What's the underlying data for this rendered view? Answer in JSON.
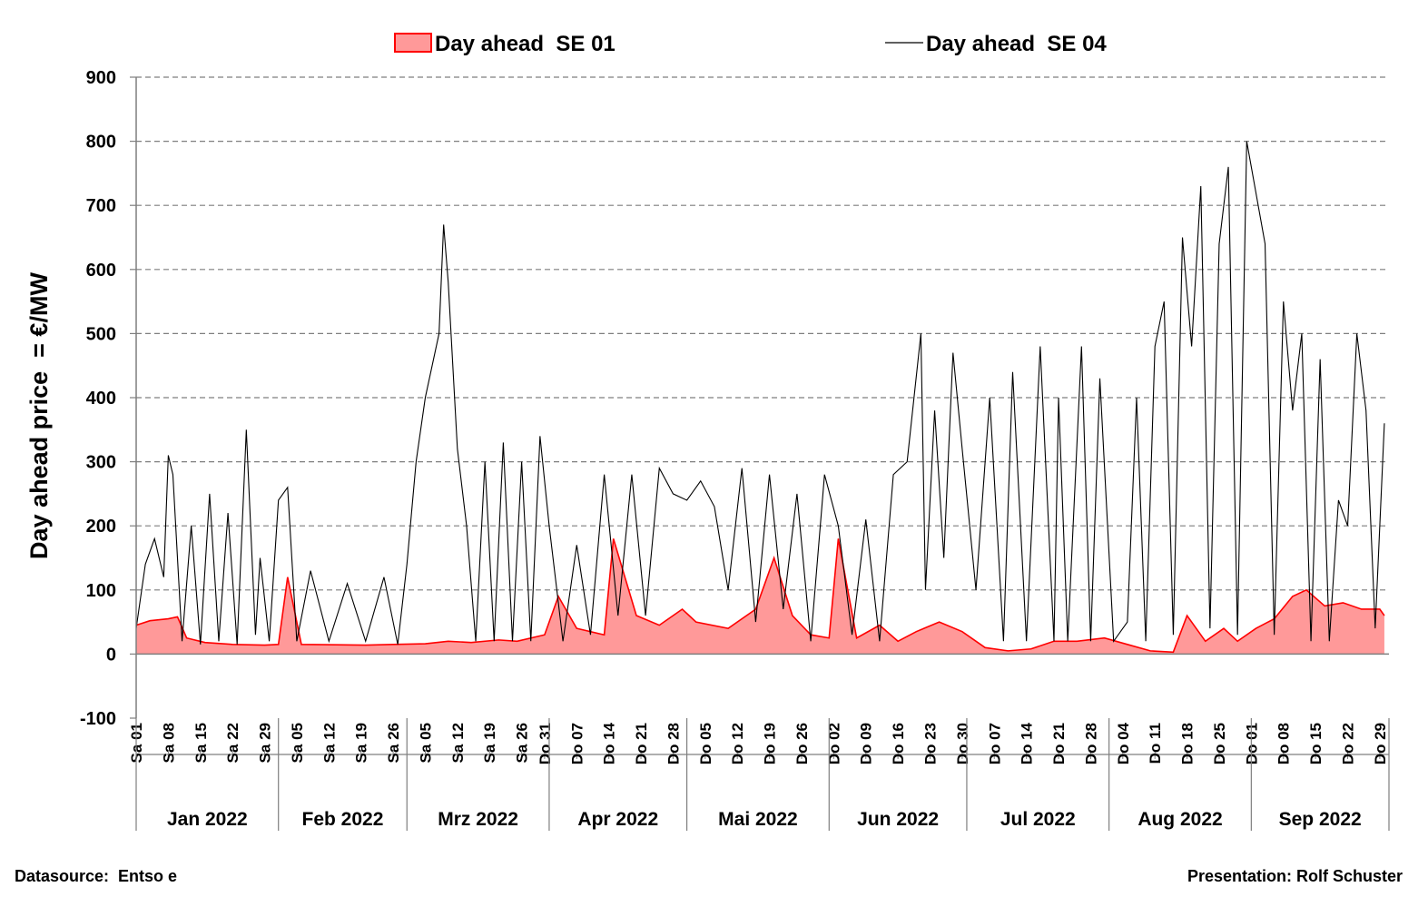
{
  "chart_data": {
    "type": "area",
    "ylabel": "Day ahead price  = €/MW",
    "ylim": [
      -100,
      900
    ],
    "yticks": [
      -100,
      0,
      100,
      200,
      300,
      400,
      500,
      600,
      700,
      800,
      900
    ],
    "grid": "horizontal-dashed",
    "legend_position": "top",
    "x_range": [
      "2022-01-01",
      "2022-09-30"
    ],
    "series": [
      {
        "name": "Day ahead  SE 01",
        "render": "area",
        "color_fill": "#ff9999",
        "color_line": "#ff0000",
        "x": [
          "2022-01-01",
          "2022-01-04",
          "2022-01-08",
          "2022-01-10",
          "2022-01-12",
          "2022-01-16",
          "2022-01-22",
          "2022-01-29",
          "2022-02-01",
          "2022-02-03",
          "2022-02-06",
          "2022-02-20",
          "2022-02-26",
          "2022-03-05",
          "2022-03-10",
          "2022-03-15",
          "2022-03-21",
          "2022-03-25",
          "2022-03-31",
          "2022-04-03",
          "2022-04-07",
          "2022-04-13",
          "2022-04-15",
          "2022-04-20",
          "2022-04-25",
          "2022-04-30",
          "2022-05-03",
          "2022-05-10",
          "2022-05-16",
          "2022-05-20",
          "2022-05-24",
          "2022-05-28",
          "2022-06-01",
          "2022-06-03",
          "2022-06-07",
          "2022-06-12",
          "2022-06-16",
          "2022-06-20",
          "2022-06-25",
          "2022-06-30",
          "2022-07-05",
          "2022-07-10",
          "2022-07-15",
          "2022-07-20",
          "2022-07-25",
          "2022-07-31",
          "2022-08-05",
          "2022-08-10",
          "2022-08-15",
          "2022-08-18",
          "2022-08-22",
          "2022-08-26",
          "2022-08-29",
          "2022-09-02",
          "2022-09-06",
          "2022-09-10",
          "2022-09-13",
          "2022-09-17",
          "2022-09-21",
          "2022-09-25",
          "2022-09-29",
          "2022-09-30"
        ],
        "y": [
          45,
          52,
          55,
          58,
          25,
          18,
          15,
          14,
          15,
          120,
          15,
          14,
          15,
          16,
          20,
          18,
          22,
          20,
          30,
          90,
          40,
          30,
          180,
          60,
          45,
          70,
          50,
          40,
          70,
          150,
          60,
          30,
          25,
          180,
          25,
          45,
          20,
          35,
          50,
          35,
          10,
          5,
          8,
          20,
          20,
          25,
          15,
          5,
          3,
          60,
          20,
          40,
          20,
          40,
          55,
          90,
          100,
          75,
          80,
          70,
          70,
          60
        ]
      },
      {
        "name": "Day ahead  SE 04",
        "render": "line",
        "color_line": "#000000",
        "x": [
          "2022-01-01",
          "2022-01-03",
          "2022-01-05",
          "2022-01-07",
          "2022-01-08",
          "2022-01-09",
          "2022-01-11",
          "2022-01-13",
          "2022-01-15",
          "2022-01-17",
          "2022-01-19",
          "2022-01-21",
          "2022-01-23",
          "2022-01-25",
          "2022-01-27",
          "2022-01-28",
          "2022-01-30",
          "2022-02-01",
          "2022-02-03",
          "2022-02-05",
          "2022-02-08",
          "2022-02-12",
          "2022-02-16",
          "2022-02-20",
          "2022-02-24",
          "2022-02-27",
          "2022-03-01",
          "2022-03-03",
          "2022-03-05",
          "2022-03-08",
          "2022-03-09",
          "2022-03-10",
          "2022-03-12",
          "2022-03-14",
          "2022-03-16",
          "2022-03-18",
          "2022-03-20",
          "2022-03-22",
          "2022-03-24",
          "2022-03-26",
          "2022-03-28",
          "2022-03-30",
          "2022-04-01",
          "2022-04-04",
          "2022-04-07",
          "2022-04-10",
          "2022-04-13",
          "2022-04-16",
          "2022-04-19",
          "2022-04-22",
          "2022-04-25",
          "2022-04-28",
          "2022-05-01",
          "2022-05-04",
          "2022-05-07",
          "2022-05-10",
          "2022-05-13",
          "2022-05-16",
          "2022-05-19",
          "2022-05-22",
          "2022-05-25",
          "2022-05-28",
          "2022-05-31",
          "2022-06-03",
          "2022-06-06",
          "2022-06-09",
          "2022-06-12",
          "2022-06-15",
          "2022-06-18",
          "2022-06-21",
          "2022-06-22",
          "2022-06-24",
          "2022-06-26",
          "2022-06-28",
          "2022-06-30",
          "2022-07-03",
          "2022-07-06",
          "2022-07-09",
          "2022-07-11",
          "2022-07-14",
          "2022-07-17",
          "2022-07-20",
          "2022-07-21",
          "2022-07-23",
          "2022-07-26",
          "2022-07-28",
          "2022-07-30",
          "2022-08-02",
          "2022-08-05",
          "2022-08-07",
          "2022-08-09",
          "2022-08-11",
          "2022-08-13",
          "2022-08-15",
          "2022-08-17",
          "2022-08-19",
          "2022-08-21",
          "2022-08-23",
          "2022-08-25",
          "2022-08-27",
          "2022-08-29",
          "2022-08-31",
          "2022-09-02",
          "2022-09-04",
          "2022-09-06",
          "2022-09-08",
          "2022-09-10",
          "2022-09-12",
          "2022-09-14",
          "2022-09-16",
          "2022-09-18",
          "2022-09-20",
          "2022-09-22",
          "2022-09-24",
          "2022-09-26",
          "2022-09-28",
          "2022-09-30"
        ],
        "y": [
          40,
          140,
          180,
          120,
          310,
          280,
          20,
          200,
          15,
          250,
          20,
          220,
          15,
          350,
          30,
          150,
          20,
          240,
          260,
          20,
          130,
          20,
          110,
          20,
          120,
          15,
          140,
          300,
          400,
          500,
          670,
          580,
          320,
          200,
          20,
          300,
          20,
          330,
          20,
          300,
          20,
          340,
          200,
          20,
          170,
          30,
          280,
          60,
          280,
          60,
          290,
          250,
          240,
          270,
          230,
          100,
          290,
          50,
          280,
          70,
          250,
          20,
          280,
          200,
          30,
          210,
          20,
          280,
          300,
          500,
          100,
          380,
          150,
          470,
          320,
          100,
          400,
          20,
          440,
          20,
          480,
          20,
          400,
          20,
          480,
          20,
          430,
          20,
          50,
          400,
          20,
          480,
          550,
          30,
          650,
          480,
          730,
          40,
          640,
          760,
          30,
          800,
          720,
          640,
          30,
          550,
          380,
          500,
          20,
          460,
          20,
          240,
          200,
          500,
          380,
          40,
          360
        ]
      }
    ],
    "x_tick_labels": [
      "Sa 01",
      "Sa 08",
      "Sa 15",
      "Sa 22",
      "Sa 29",
      "Sa 05",
      "Sa 12",
      "Sa 19",
      "Sa 26",
      "Sa 05",
      "Sa 12",
      "Sa 19",
      "Sa 26",
      "Do 31",
      "Do 07",
      "Do 14",
      "Do 21",
      "Do 28",
      "Do 05",
      "Do 12",
      "Do 19",
      "Do 26",
      "Do 02",
      "Do 09",
      "Do 16",
      "Do 23",
      "Do 30",
      "Do 07",
      "Do 14",
      "Do 21",
      "Do 28",
      "Do 04",
      "Do 11",
      "Do 18",
      "Do 25",
      "Do 01",
      "Do 08",
      "Do 15",
      "Do 22",
      "Do 29"
    ],
    "x_tick_dates": [
      "2022-01-01",
      "2022-01-08",
      "2022-01-15",
      "2022-01-22",
      "2022-01-29",
      "2022-02-05",
      "2022-02-12",
      "2022-02-19",
      "2022-02-26",
      "2022-03-05",
      "2022-03-12",
      "2022-03-19",
      "2022-03-26",
      "2022-03-31",
      "2022-04-07",
      "2022-04-14",
      "2022-04-21",
      "2022-04-28",
      "2022-05-05",
      "2022-05-12",
      "2022-05-19",
      "2022-05-26",
      "2022-06-02",
      "2022-06-09",
      "2022-06-16",
      "2022-06-23",
      "2022-06-30",
      "2022-07-07",
      "2022-07-14",
      "2022-07-21",
      "2022-07-28",
      "2022-08-04",
      "2022-08-11",
      "2022-08-18",
      "2022-08-25",
      "2022-09-01",
      "2022-09-08",
      "2022-09-15",
      "2022-09-22",
      "2022-09-29"
    ],
    "months": [
      {
        "label": "Jan 2022",
        "start": "2022-01-01",
        "end": "2022-02-01"
      },
      {
        "label": "Feb 2022",
        "start": "2022-02-01",
        "end": "2022-03-01"
      },
      {
        "label": "Mrz 2022",
        "start": "2022-03-01",
        "end": "2022-04-01"
      },
      {
        "label": "Apr 2022",
        "start": "2022-04-01",
        "end": "2022-05-01"
      },
      {
        "label": "Mai 2022",
        "start": "2022-05-01",
        "end": "2022-06-01"
      },
      {
        "label": "Jun 2022",
        "start": "2022-06-01",
        "end": "2022-07-01"
      },
      {
        "label": "Jul 2022",
        "start": "2022-07-01",
        "end": "2022-08-01"
      },
      {
        "label": "Aug 2022",
        "start": "2022-08-01",
        "end": "2022-09-01"
      },
      {
        "label": "Sep 2022",
        "start": "2022-09-01",
        "end": "2022-10-01"
      }
    ]
  },
  "footer": {
    "datasource": "Datasource:  Entso e",
    "presentation": "Presentation: Rolf Schuster"
  }
}
